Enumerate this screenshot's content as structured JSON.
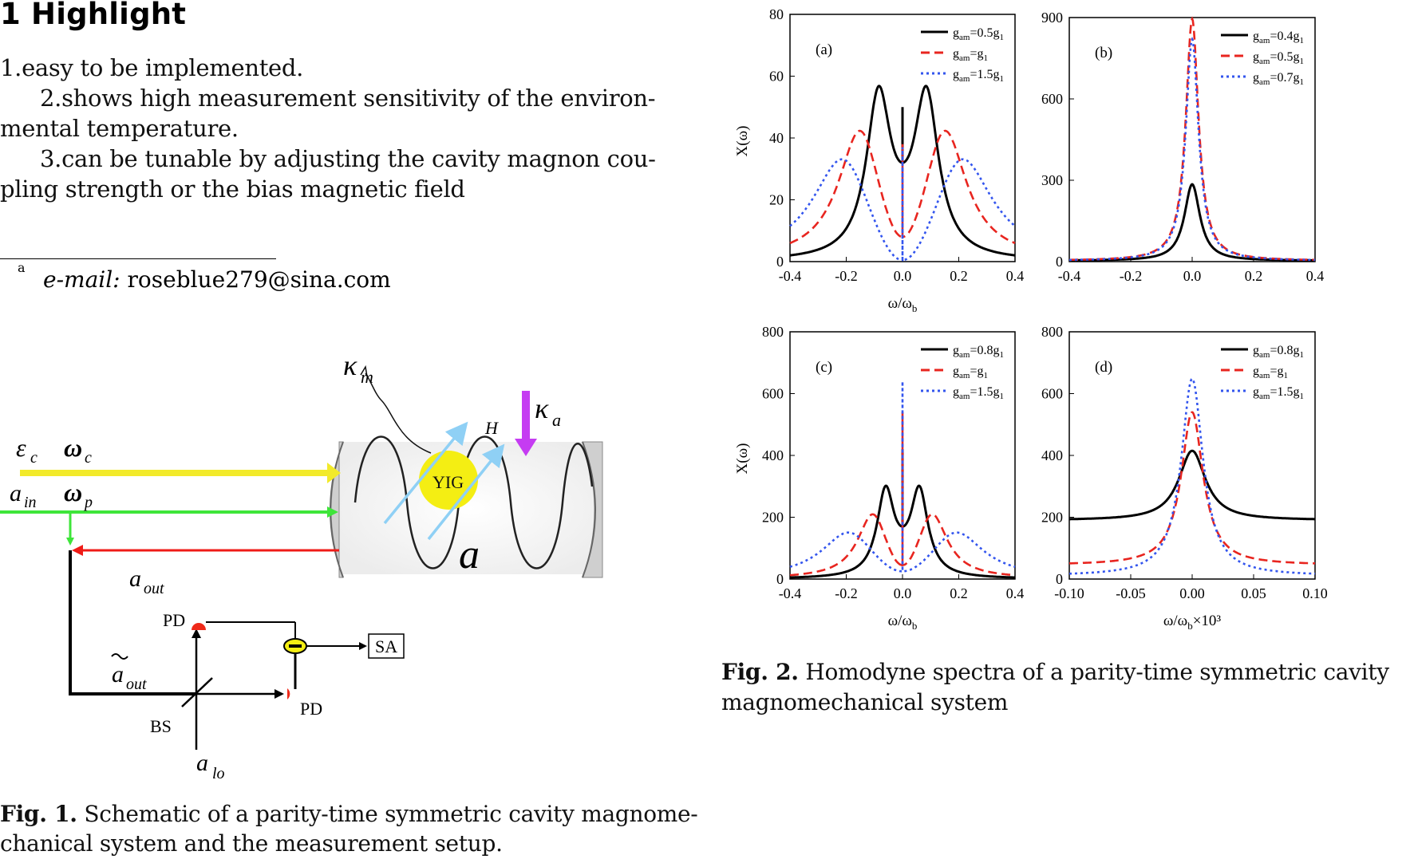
{
  "highlight": {
    "title": "1 Highlight",
    "line1": "1.easy to be implemented.",
    "line2": "2.shows high measurement sensitivity of the environ-",
    "line3": "mental temperature.",
    "line4": "3.can be tunable by adjusting the cavity magnon cou-",
    "line5": "pling strength or the bias magnetic field"
  },
  "footnote": {
    "marker": "a",
    "label": "e-mail:",
    "email": "roseblue279@sina.com"
  },
  "fig1": {
    "caption_label": "Fig. 1.",
    "caption_line1": "Schematic of a parity-time symmetric cavity magnome-",
    "caption_line2": "chanical system and the measurement setup.",
    "labels": {
      "yig": "YIG",
      "pd": "PD",
      "sa": "SA",
      "bs": "BS",
      "h": "H",
      "cavity": "a"
    },
    "colors": {
      "drive": "#f2ea2a",
      "probe": "#3ee53a",
      "out": "#ef1b17",
      "kappa_a": "#c53cf2",
      "field": "#8fd0f5",
      "yig": "#f4ee13",
      "pd": "#ef2a1a"
    }
  },
  "fig2": {
    "caption_label": "Fig. 2.",
    "caption_line1": "Homodyne spectra of a parity-time symmetric cavity",
    "caption_line2": "magnomechanical system"
  },
  "chart_data": [
    {
      "type": "line",
      "panel": "(a)",
      "ylabel": "X(ω)",
      "xlabel": "ω/ω_b",
      "xlim": [
        -0.4,
        0.4
      ],
      "ylim": [
        0,
        80
      ],
      "xticks": [
        "-0.4",
        "-0.2",
        "0.0",
        "0.2",
        "0.4"
      ],
      "yticks": [
        "0",
        "20",
        "40",
        "60",
        "80"
      ],
      "legend_position": "top-right",
      "series": [
        {
          "name": "gam=0.5g1",
          "color": "#000000",
          "style": "solid",
          "peaks": [
            -0.085,
            0.085
          ],
          "peak_value": 56.5,
          "center_value": 32,
          "spike_value": 50,
          "edge_value": 4
        },
        {
          "name": "gam=g1",
          "color": "#e8251f",
          "style": "dashed",
          "peaks": [
            -0.15,
            0.15
          ],
          "peak_value": 43.5,
          "center_value": 8,
          "spike_value": 38,
          "edge_value": 5
        },
        {
          "name": "gam=1.5g1",
          "color": "#3355ee",
          "style": "dotted",
          "peaks": [
            -0.21,
            0.21
          ],
          "peak_value": 34.5,
          "center_value": 0.5,
          "spike_value": 37,
          "edge_value": 6
        }
      ]
    },
    {
      "type": "line",
      "panel": "(b)",
      "xlim": [
        -0.4,
        0.4
      ],
      "ylim": [
        0,
        900
      ],
      "xticks": [
        "-0.4",
        "-0.2",
        "0.0",
        "0.2",
        "0.4"
      ],
      "yticks": [
        "0",
        "300",
        "600",
        "900"
      ],
      "legend_position": "top-right",
      "series": [
        {
          "name": "gam=0.4g1",
          "color": "#000000",
          "style": "solid",
          "peak_value": 285,
          "edge_value": 3
        },
        {
          "name": "gam=0.5g1",
          "color": "#e8251f",
          "style": "dashed",
          "peak_value": 895,
          "edge_value": 3
        },
        {
          "name": "gam=0.7g1",
          "color": "#3355ee",
          "style": "dotted",
          "peak_value": 820,
          "edge_value": 3
        }
      ]
    },
    {
      "type": "line",
      "panel": "(c)",
      "ylabel": "X(ω)",
      "xlabel": "ω/ω_b",
      "xlim": [
        -0.4,
        0.4
      ],
      "ylim": [
        0,
        800
      ],
      "xticks": [
        "-0.4",
        "-0.2",
        "0.0",
        "0.2",
        "0.4"
      ],
      "yticks": [
        "0",
        "200",
        "400",
        "600",
        "800"
      ],
      "legend_position": "top-right",
      "series": [
        {
          "name": "gam=0.8g1",
          "color": "#000000",
          "style": "solid",
          "peaks": [
            -0.06,
            0.06
          ],
          "peak_value": 300,
          "center_value": 170,
          "spike_value": 420,
          "edge_value": 3
        },
        {
          "name": "gam=g1",
          "color": "#e8251f",
          "style": "dashed",
          "peaks": [
            -0.105,
            0.105
          ],
          "peak_value": 215,
          "center_value": 45,
          "spike_value": 540,
          "edge_value": 4
        },
        {
          "name": "gam=1.5g1",
          "color": "#3355ee",
          "style": "dotted",
          "peaks": [
            -0.19,
            0.19
          ],
          "peak_value": 155,
          "center_value": 25,
          "spike_value": 640,
          "edge_value": 5
        }
      ]
    },
    {
      "type": "line",
      "panel": "(d)",
      "xlabel": "ω/ω_b×10³",
      "xlim": [
        -0.1,
        0.1
      ],
      "ylim": [
        0,
        800
      ],
      "xticks": [
        "-0.10",
        "-0.05",
        "0.00",
        "0.05",
        "0.10"
      ],
      "yticks": [
        "0",
        "200",
        "400",
        "600",
        "800"
      ],
      "legend_position": "top-right",
      "series": [
        {
          "name": "gam=0.8g1",
          "color": "#000000",
          "style": "solid",
          "peak_value": 415,
          "edge_value": 190
        },
        {
          "name": "gam=g1",
          "color": "#e8251f",
          "style": "dashed",
          "peak_value": 540,
          "edge_value": 45
        },
        {
          "name": "gam=1.5g1",
          "color": "#3355ee",
          "style": "dotted",
          "peak_value": 648,
          "edge_value": 10
        }
      ]
    }
  ]
}
